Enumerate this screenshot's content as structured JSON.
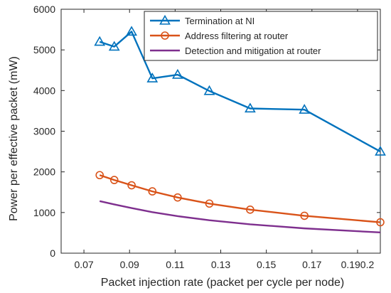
{
  "chart_data": {
    "type": "line",
    "title": "",
    "xlabel": "Packet injection rate (packet per cycle per node)",
    "ylabel": "Power per effective packet (mW)",
    "xlim": [
      0.06,
      0.2
    ],
    "ylim": [
      0,
      6000
    ],
    "x_ticks": [
      0.07,
      0.09,
      0.11,
      0.13,
      0.15,
      0.17,
      0.19,
      0.2
    ],
    "x_tick_labels": [
      "0.07",
      "0.09",
      "0.11",
      "0.13",
      "0.15",
      "0.17",
      "0.190.2",
      ""
    ],
    "y_ticks": [
      0,
      1000,
      2000,
      3000,
      4000,
      5000,
      6000
    ],
    "y_tick_labels": [
      "0",
      "1000",
      "2000",
      "3000",
      "4000",
      "5000",
      "6000"
    ],
    "grid": false,
    "legend_position": "top-right",
    "series": [
      {
        "name": "Termination at NI",
        "color": "#0072BD",
        "marker": "triangle",
        "x": [
          0.0769,
          0.0833,
          0.0909,
          0.1,
          0.1111,
          0.125,
          0.1429,
          0.1667,
          0.2
        ],
        "values": [
          5200,
          5080,
          5450,
          4300,
          4390,
          3990,
          3560,
          3530,
          2500
        ]
      },
      {
        "name": "Address filtering at router",
        "color": "#D95319",
        "marker": "circle",
        "x": [
          0.0769,
          0.0833,
          0.0909,
          0.1,
          0.1111,
          0.125,
          0.1429,
          0.1667,
          0.2
        ],
        "values": [
          1920,
          1800,
          1670,
          1520,
          1370,
          1220,
          1070,
          920,
          760
        ]
      },
      {
        "name": "Detection and mitigation at router",
        "color": "#7E2F8E",
        "marker": "none",
        "x": [
          0.0769,
          0.0833,
          0.0909,
          0.1,
          0.1111,
          0.125,
          0.1429,
          0.1667,
          0.2
        ],
        "values": [
          1280,
          1200,
          1110,
          1010,
          910,
          810,
          710,
          610,
          510
        ]
      }
    ]
  }
}
